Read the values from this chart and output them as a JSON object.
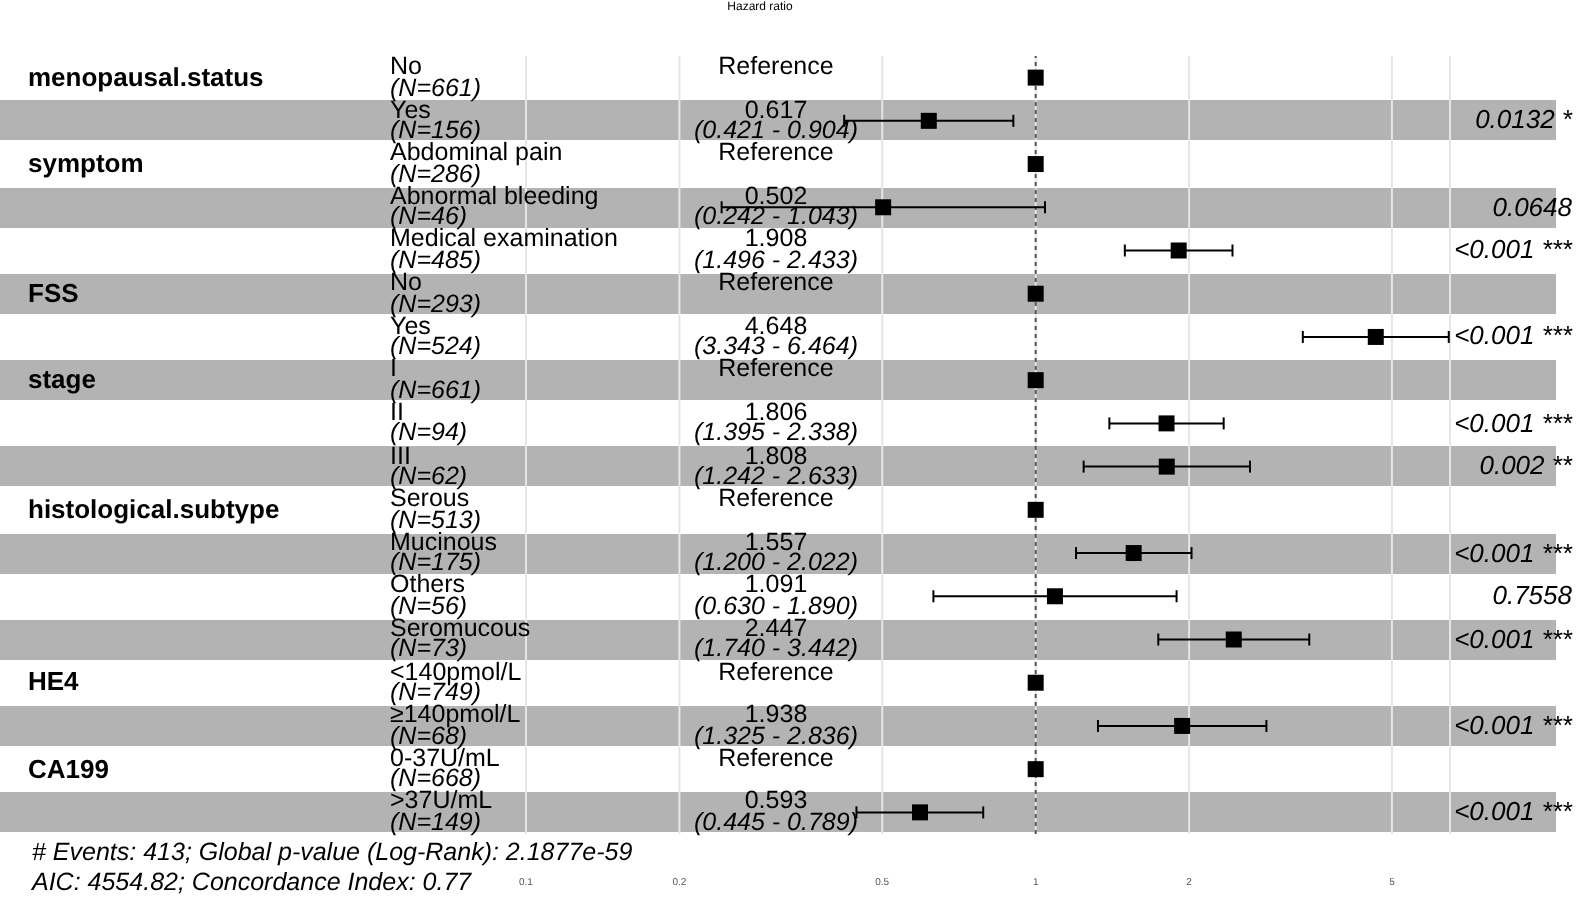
{
  "chart_data": {
    "type": "scatter",
    "orientation": "horizontal",
    "title": "Hazard ratio",
    "categories": [
      "No\n(N=661)",
      "Yes\n(N=156)",
      "Abdominal pain\n(N=286)",
      "Abnormal bleeding\n(N=46)",
      "Medical examination\n(N=485)",
      "No\n(N=293)",
      "Yes\n(N=524)",
      "I\n(N=661)",
      "II\n(N=94)",
      "III\n(N=62)",
      "Serous\n(N=513)",
      "Mucinous\n(N=175)",
      "Others\n(N=56)",
      "Seromucous\n(N=73)",
      "<140pmol/L\n(N=749)",
      "≥140pmol/L\n(N=68)",
      "0-37U/mL\n(N=668)",
      ">37U/mL\n(N=149)"
    ],
    "series": [
      {
        "color": "#000000",
        "marker": "square",
        "values": [
          1,
          0.617,
          1,
          0.502,
          1.908,
          1,
          4.648,
          1,
          1.806,
          1.808,
          1,
          1.557,
          1.091,
          2.447,
          1,
          1.938,
          1,
          0.593
        ],
        "errors": [
          null,
          [
            0.421,
            0.904
          ],
          null,
          [
            0.242,
            1.043
          ],
          [
            1.496,
            2.433
          ],
          null,
          [
            3.343,
            6.464
          ],
          null,
          [
            1.395,
            2.338
          ],
          [
            1.242,
            2.633
          ],
          null,
          [
            1.2,
            2.022
          ],
          [
            0.63,
            1.89
          ],
          [
            1.74,
            3.442
          ],
          null,
          [
            1.325,
            2.836
          ],
          null,
          [
            0.445,
            0.789
          ]
        ]
      }
    ],
    "log": "x",
    "xlim": [
      0.1,
      6.5
    ],
    "xticks": [
      0.1,
      0.2,
      0.5,
      1,
      2,
      5
    ],
    "grid": "x",
    "ref_lines": [
      {
        "axis": "x",
        "value": 1,
        "line_style": "dotted"
      }
    ],
    "annotations": [
      "Reference",
      "0.617\n(0.421 - 0.904)",
      "Reference",
      "0.502\n(0.242 - 1.043)",
      "1.908\n(1.496 - 2.433)",
      "Reference",
      "4.648\n(3.343 - 6.464)",
      "Reference",
      "1.806\n(1.395 - 2.338)",
      "1.808\n(1.242 - 2.633)",
      "Reference",
      "1.557\n(1.200 - 2.022)",
      "1.091\n(0.630 - 1.890)",
      "2.447\n(1.740 - 3.442)",
      "Reference",
      "1.938\n(1.325 - 2.836)",
      "Reference",
      "0.593\n(0.445 - 0.789)",
      "menopausal.status",
      "0.0132 *",
      "symptom",
      "0.0648",
      "<0.001 ***",
      "FSS",
      "<0.001 ***",
      "stage",
      "<0.001 ***",
      "0.002 **",
      "histological.subtype",
      "<0.001 ***",
      "0.7558",
      "<0.001 ***",
      "HE4",
      "<0.001 ***",
      "CA199",
      "<0.001 ***",
      "# Events: 413; Global p-value (Log-Rank): 2.1877e-59",
      "AIC: 4554.82; Concordance Index: 0.77"
    ]
  }
}
